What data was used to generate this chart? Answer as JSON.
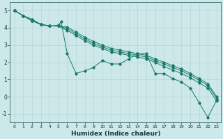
{
  "xlabel": "Humidex (Indice chaleur)",
  "bg_color": "#cce8e8",
  "line_color": "#1a7a6a",
  "grid_color": "#b8d4d4",
  "xlim": [
    -0.5,
    23.5
  ],
  "ylim": [
    -1.5,
    5.5
  ],
  "xticks": [
    0,
    1,
    2,
    3,
    4,
    5,
    6,
    7,
    8,
    9,
    10,
    11,
    12,
    13,
    14,
    15,
    16,
    17,
    18,
    19,
    20,
    21,
    22,
    23
  ],
  "yticks": [
    -1,
    0,
    1,
    2,
    3,
    4,
    5
  ],
  "series1_x": [
    0,
    1,
    2,
    3,
    4,
    5,
    5.3,
    6,
    7,
    8,
    9,
    10,
    11,
    12,
    13,
    14,
    15,
    16,
    17,
    18,
    19,
    20,
    21,
    22,
    23
  ],
  "series1_y": [
    5.0,
    4.7,
    4.5,
    4.2,
    4.1,
    4.15,
    4.35,
    2.5,
    1.35,
    1.5,
    1.7,
    2.1,
    1.9,
    1.9,
    2.2,
    2.5,
    2.5,
    1.35,
    1.35,
    1.05,
    0.85,
    0.5,
    -0.35,
    -1.2,
    -0.2
  ],
  "series2_x": [
    0,
    1,
    2,
    3,
    4,
    5,
    6,
    7,
    8,
    9,
    10,
    11,
    12,
    13,
    14,
    15,
    16,
    17,
    18,
    19,
    20,
    21,
    22,
    23
  ],
  "series2_y": [
    5.0,
    4.7,
    4.4,
    4.2,
    4.1,
    4.1,
    3.85,
    3.55,
    3.25,
    3.0,
    2.8,
    2.6,
    2.5,
    2.4,
    2.3,
    2.2,
    2.0,
    1.75,
    1.55,
    1.35,
    1.1,
    0.8,
    0.5,
    -0.25
  ],
  "series3_x": [
    0,
    1,
    2,
    3,
    4,
    5,
    6,
    7,
    8,
    9,
    10,
    11,
    12,
    13,
    14,
    15,
    16,
    17,
    18,
    19,
    20,
    21,
    22,
    23
  ],
  "series3_y": [
    5.0,
    4.7,
    4.4,
    4.2,
    4.1,
    4.1,
    3.95,
    3.65,
    3.35,
    3.1,
    2.9,
    2.7,
    2.6,
    2.5,
    2.4,
    2.3,
    2.1,
    1.9,
    1.7,
    1.5,
    1.25,
    0.95,
    0.65,
    -0.1
  ],
  "series4_x": [
    0,
    1,
    2,
    3,
    4,
    5,
    6,
    7,
    8,
    9,
    10,
    11,
    12,
    13,
    14,
    15,
    16,
    17,
    18,
    19,
    20,
    21,
    22,
    23
  ],
  "series4_y": [
    5.0,
    4.7,
    4.4,
    4.2,
    4.1,
    4.1,
    4.05,
    3.75,
    3.45,
    3.2,
    3.0,
    2.8,
    2.7,
    2.6,
    2.5,
    2.4,
    2.2,
    2.0,
    1.8,
    1.6,
    1.35,
    1.05,
    0.75,
    0.0
  ]
}
